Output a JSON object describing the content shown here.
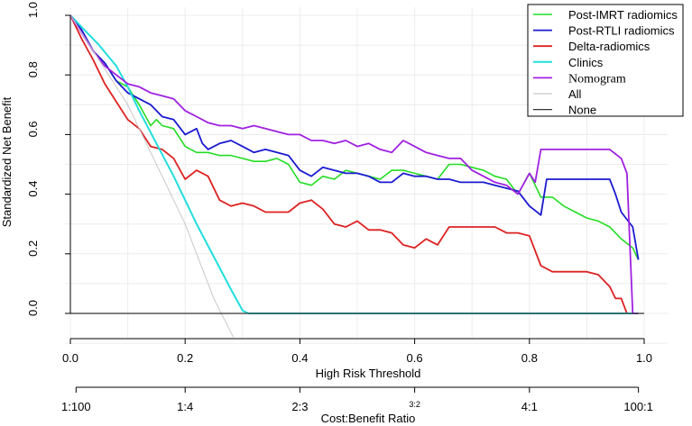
{
  "chart_data": {
    "type": "line",
    "title": "",
    "xlabel": "High Risk Threshold",
    "ylabel": "Standardized Net Benefit",
    "secondary_xlabel": "Cost:Benefit Ratio",
    "xlim": [
      0,
      1
    ],
    "ylim": [
      -0.08,
      1.0
    ],
    "x_ticks": [
      0.0,
      0.2,
      0.4,
      0.6,
      0.8,
      1.0
    ],
    "x_tick_labels": [
      "0.0",
      "0.2",
      "0.4",
      "0.6",
      "0.8",
      "1.0"
    ],
    "y_ticks": [
      0.0,
      0.2,
      0.4,
      0.6,
      0.8,
      1.0
    ],
    "y_tick_labels": [
      "0.0",
      "0.2",
      "0.4",
      "0.6",
      "0.8",
      "1.0"
    ],
    "secondary_ticks": [
      0.0099,
      0.2,
      0.4,
      0.6,
      0.8,
      0.99
    ],
    "secondary_tick_labels": [
      "1:100",
      "1:4",
      "2:3",
      "3:2",
      "4:1",
      "100:1"
    ],
    "grid": true,
    "legend_position": "top-right",
    "series": [
      {
        "name": "Post-IMRT radiomics",
        "color": "#22dd22",
        "width": 1.6,
        "x": [
          0,
          0.02,
          0.04,
          0.06,
          0.08,
          0.1,
          0.12,
          0.14,
          0.15,
          0.16,
          0.18,
          0.2,
          0.22,
          0.24,
          0.26,
          0.28,
          0.3,
          0.32,
          0.34,
          0.36,
          0.38,
          0.4,
          0.42,
          0.44,
          0.46,
          0.48,
          0.5,
          0.52,
          0.54,
          0.56,
          0.58,
          0.6,
          0.62,
          0.64,
          0.66,
          0.68,
          0.7,
          0.72,
          0.74,
          0.76,
          0.78,
          0.8,
          0.81,
          0.82,
          0.84,
          0.86,
          0.88,
          0.9,
          0.92,
          0.94,
          0.96,
          0.98,
          0.99
        ],
        "y": [
          1.0,
          0.95,
          0.88,
          0.84,
          0.78,
          0.76,
          0.7,
          0.63,
          0.65,
          0.63,
          0.62,
          0.56,
          0.54,
          0.54,
          0.53,
          0.53,
          0.52,
          0.51,
          0.51,
          0.52,
          0.5,
          0.44,
          0.43,
          0.46,
          0.45,
          0.48,
          0.47,
          0.46,
          0.45,
          0.48,
          0.48,
          0.47,
          0.46,
          0.45,
          0.5,
          0.5,
          0.49,
          0.48,
          0.46,
          0.45,
          0.4,
          0.47,
          0.43,
          0.39,
          0.39,
          0.36,
          0.34,
          0.32,
          0.31,
          0.29,
          0.25,
          0.22,
          0.18
        ]
      },
      {
        "name": "Post-RTLI radiomics",
        "color": "#1a1ad0",
        "width": 1.8,
        "x": [
          0,
          0.02,
          0.04,
          0.06,
          0.08,
          0.1,
          0.12,
          0.14,
          0.16,
          0.18,
          0.2,
          0.22,
          0.23,
          0.24,
          0.26,
          0.28,
          0.3,
          0.32,
          0.34,
          0.36,
          0.38,
          0.4,
          0.42,
          0.44,
          0.46,
          0.48,
          0.5,
          0.52,
          0.54,
          0.56,
          0.58,
          0.6,
          0.62,
          0.64,
          0.66,
          0.68,
          0.7,
          0.72,
          0.74,
          0.76,
          0.78,
          0.8,
          0.82,
          0.83,
          0.84,
          0.86,
          0.88,
          0.9,
          0.92,
          0.94,
          0.95,
          0.96,
          0.98,
          0.99
        ],
        "y": [
          1.0,
          0.95,
          0.88,
          0.84,
          0.78,
          0.74,
          0.72,
          0.7,
          0.66,
          0.65,
          0.6,
          0.62,
          0.57,
          0.55,
          0.57,
          0.58,
          0.56,
          0.54,
          0.55,
          0.54,
          0.53,
          0.48,
          0.46,
          0.49,
          0.48,
          0.47,
          0.47,
          0.46,
          0.44,
          0.44,
          0.47,
          0.46,
          0.46,
          0.45,
          0.45,
          0.44,
          0.44,
          0.44,
          0.43,
          0.42,
          0.41,
          0.36,
          0.33,
          0.45,
          0.45,
          0.45,
          0.45,
          0.45,
          0.45,
          0.45,
          0.4,
          0.34,
          0.29,
          0.18
        ]
      },
      {
        "name": "Delta-radiomics",
        "color": "#dd2222",
        "width": 1.8,
        "x": [
          0,
          0.02,
          0.04,
          0.06,
          0.08,
          0.1,
          0.12,
          0.14,
          0.16,
          0.18,
          0.2,
          0.22,
          0.24,
          0.26,
          0.28,
          0.3,
          0.32,
          0.34,
          0.36,
          0.38,
          0.4,
          0.42,
          0.44,
          0.46,
          0.48,
          0.5,
          0.52,
          0.54,
          0.56,
          0.58,
          0.6,
          0.62,
          0.64,
          0.66,
          0.68,
          0.7,
          0.72,
          0.74,
          0.76,
          0.78,
          0.8,
          0.82,
          0.84,
          0.86,
          0.88,
          0.9,
          0.92,
          0.94,
          0.95,
          0.96,
          0.97
        ],
        "y": [
          1.0,
          0.92,
          0.85,
          0.77,
          0.71,
          0.65,
          0.62,
          0.56,
          0.55,
          0.52,
          0.45,
          0.48,
          0.46,
          0.38,
          0.36,
          0.37,
          0.36,
          0.34,
          0.34,
          0.34,
          0.37,
          0.38,
          0.35,
          0.3,
          0.29,
          0.31,
          0.28,
          0.28,
          0.27,
          0.23,
          0.22,
          0.25,
          0.23,
          0.29,
          0.29,
          0.29,
          0.29,
          0.29,
          0.27,
          0.27,
          0.26,
          0.16,
          0.14,
          0.14,
          0.14,
          0.14,
          0.13,
          0.09,
          0.05,
          0.05,
          0.0
        ]
      },
      {
        "name": "Clinics",
        "color": "#22dddd",
        "width": 2.0,
        "x": [
          0,
          0.02,
          0.05,
          0.08,
          0.1,
          0.12,
          0.15,
          0.18,
          0.2,
          0.22,
          0.25,
          0.28,
          0.3,
          0.31,
          0.32,
          0.5,
          0.7,
          0.9,
          0.99
        ],
        "y": [
          1.0,
          0.96,
          0.9,
          0.83,
          0.76,
          0.68,
          0.57,
          0.46,
          0.38,
          0.3,
          0.19,
          0.08,
          0.01,
          0.0,
          0.0,
          0.0,
          0.0,
          0.0,
          0.0
        ]
      },
      {
        "name": "Nomogram",
        "color": "#a020e0",
        "width": 1.8,
        "x": [
          0,
          0.02,
          0.04,
          0.06,
          0.08,
          0.1,
          0.12,
          0.14,
          0.16,
          0.18,
          0.2,
          0.22,
          0.24,
          0.26,
          0.28,
          0.3,
          0.32,
          0.34,
          0.36,
          0.38,
          0.4,
          0.42,
          0.44,
          0.46,
          0.48,
          0.5,
          0.52,
          0.54,
          0.56,
          0.58,
          0.6,
          0.62,
          0.64,
          0.66,
          0.68,
          0.7,
          0.72,
          0.74,
          0.76,
          0.78,
          0.8,
          0.81,
          0.82,
          0.84,
          0.86,
          0.88,
          0.9,
          0.92,
          0.94,
          0.96,
          0.97,
          0.98,
          0.99
        ],
        "y": [
          1.0,
          0.94,
          0.88,
          0.83,
          0.8,
          0.77,
          0.76,
          0.74,
          0.73,
          0.72,
          0.68,
          0.66,
          0.64,
          0.63,
          0.63,
          0.62,
          0.63,
          0.62,
          0.61,
          0.6,
          0.6,
          0.58,
          0.58,
          0.57,
          0.58,
          0.56,
          0.57,
          0.55,
          0.54,
          0.58,
          0.56,
          0.54,
          0.53,
          0.52,
          0.52,
          0.48,
          0.46,
          0.44,
          0.43,
          0.4,
          0.47,
          0.44,
          0.55,
          0.55,
          0.55,
          0.55,
          0.55,
          0.55,
          0.55,
          0.52,
          0.47,
          0.0,
          0.0
        ]
      },
      {
        "name": "All",
        "color": "#c8c8c8",
        "width": 1.0,
        "x": [
          0,
          0.1,
          0.2,
          0.25,
          0.284
        ],
        "y": [
          1.0,
          0.7,
          0.3,
          0.05,
          -0.08
        ]
      },
      {
        "name": "None",
        "color": "#333333",
        "width": 1.3,
        "x": [
          0,
          1
        ],
        "y": [
          0,
          0
        ]
      }
    ]
  }
}
